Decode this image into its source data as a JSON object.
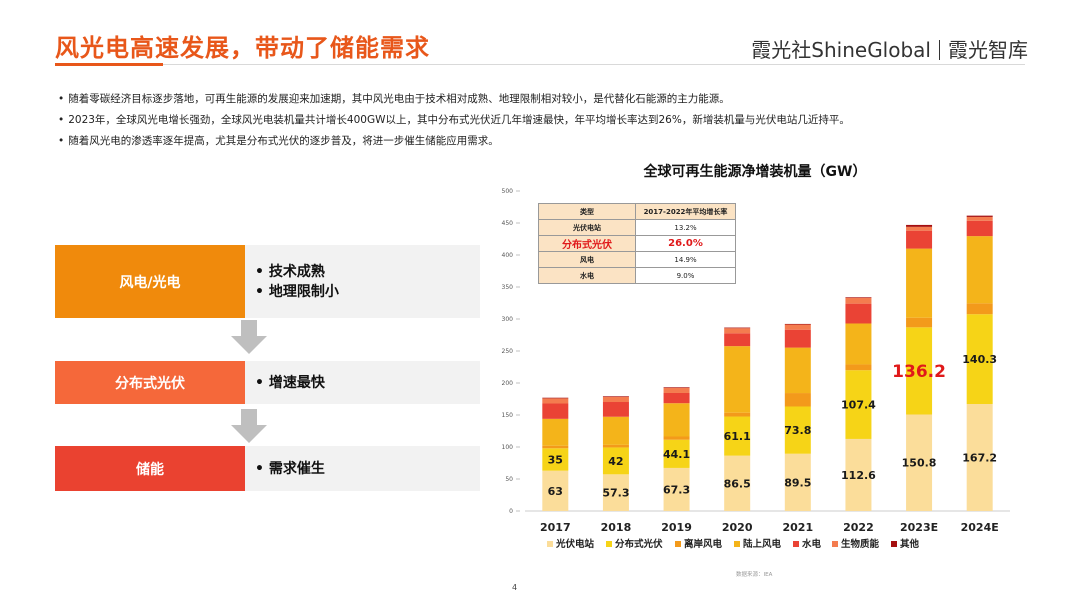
{
  "header": {
    "title": "风光电高速发展，带动了储能需求",
    "brand_left": "霞光社ShineGlobal",
    "brand_right": "霞光智库"
  },
  "bullets": [
    "随着零碳经济目标逐步落地，可再生能源的发展迎来加速期，其中风光电由于技术相对成熟、地理限制相对较小，是代替化石能源的主力能源。",
    "2023年，全球风光电增长强劲，全球风光电装机量共计增长400GW以上，其中分布式光伏近几年增速最快，年平均增长率达到26%，新增装机量与光伏电站几近持平。",
    "随着风光电的渗透率逐年提高，尤其是分布式光伏的逐步普及，将进一步催生储能应用需求。"
  ],
  "flow": {
    "rows": [
      {
        "label": "风电/光电",
        "points": [
          "技术成熟",
          "地理限制小"
        ],
        "color": "#F08A0C"
      },
      {
        "label": "分布式光伏",
        "points": [
          "增速最快"
        ],
        "color": "#F5683A"
      },
      {
        "label": "储能",
        "points": [
          "需求催生"
        ],
        "color": "#EA4230"
      }
    ],
    "arrow_color": "#BFBFBF"
  },
  "growth_table": {
    "headers": [
      "类型",
      "2017-2022年平均增长率"
    ],
    "rows": [
      {
        "type": "光伏电站",
        "rate": "13.2%"
      },
      {
        "type": "分布式光伏",
        "rate": "26.0%",
        "highlight": true
      },
      {
        "type": "风电",
        "rate": "14.9%"
      },
      {
        "type": "水电",
        "rate": "9.0%"
      }
    ]
  },
  "chart_data": {
    "type": "bar",
    "stacked": true,
    "title": "全球可再生能源净增装机量（GW）",
    "categories": [
      "2017",
      "2018",
      "2019",
      "2020",
      "2021",
      "2022",
      "2023E",
      "2024E"
    ],
    "ylim": [
      0,
      500
    ],
    "yticks": [
      0,
      50,
      100,
      150,
      200,
      250,
      300,
      350,
      400,
      450,
      500
    ],
    "grid": false,
    "legend_position": "bottom",
    "series": [
      {
        "name": "光伏电站",
        "color": "#FBDD9A",
        "values": [
          63,
          57.3,
          67.3,
          86.5,
          89.5,
          112.6,
          150.8,
          167.2
        ],
        "labeled": true
      },
      {
        "name": "分布式光伏",
        "color": "#F6D417",
        "values": [
          35,
          42,
          44.1,
          61.1,
          73.8,
          107.4,
          136.2,
          140.3
        ],
        "labeled": true
      },
      {
        "name": "离岸风电",
        "color": "#F39A1B",
        "values": [
          4,
          4,
          5,
          6,
          21,
          9,
          15,
          17
        ]
      },
      {
        "name": "陆上风电",
        "color": "#F4B41A",
        "values": [
          42,
          44,
          52,
          104,
          71,
          64,
          108,
          105
        ]
      },
      {
        "name": "水电",
        "color": "#EA4335",
        "values": [
          24,
          23,
          16,
          20,
          28,
          31,
          28,
          24
        ]
      },
      {
        "name": "生物质能",
        "color": "#F47C4F",
        "values": [
          8,
          8,
          8,
          8,
          8,
          9,
          6,
          6
        ]
      },
      {
        "name": "其他",
        "color": "#A50F0F",
        "values": [
          1,
          1,
          1,
          1,
          1,
          1,
          3,
          2
        ]
      }
    ],
    "highlight_label": {
      "category": "2023E",
      "series": "分布式光伏",
      "color": "#E0191A"
    },
    "source": "数据来源：IEA"
  },
  "page_number": "4"
}
